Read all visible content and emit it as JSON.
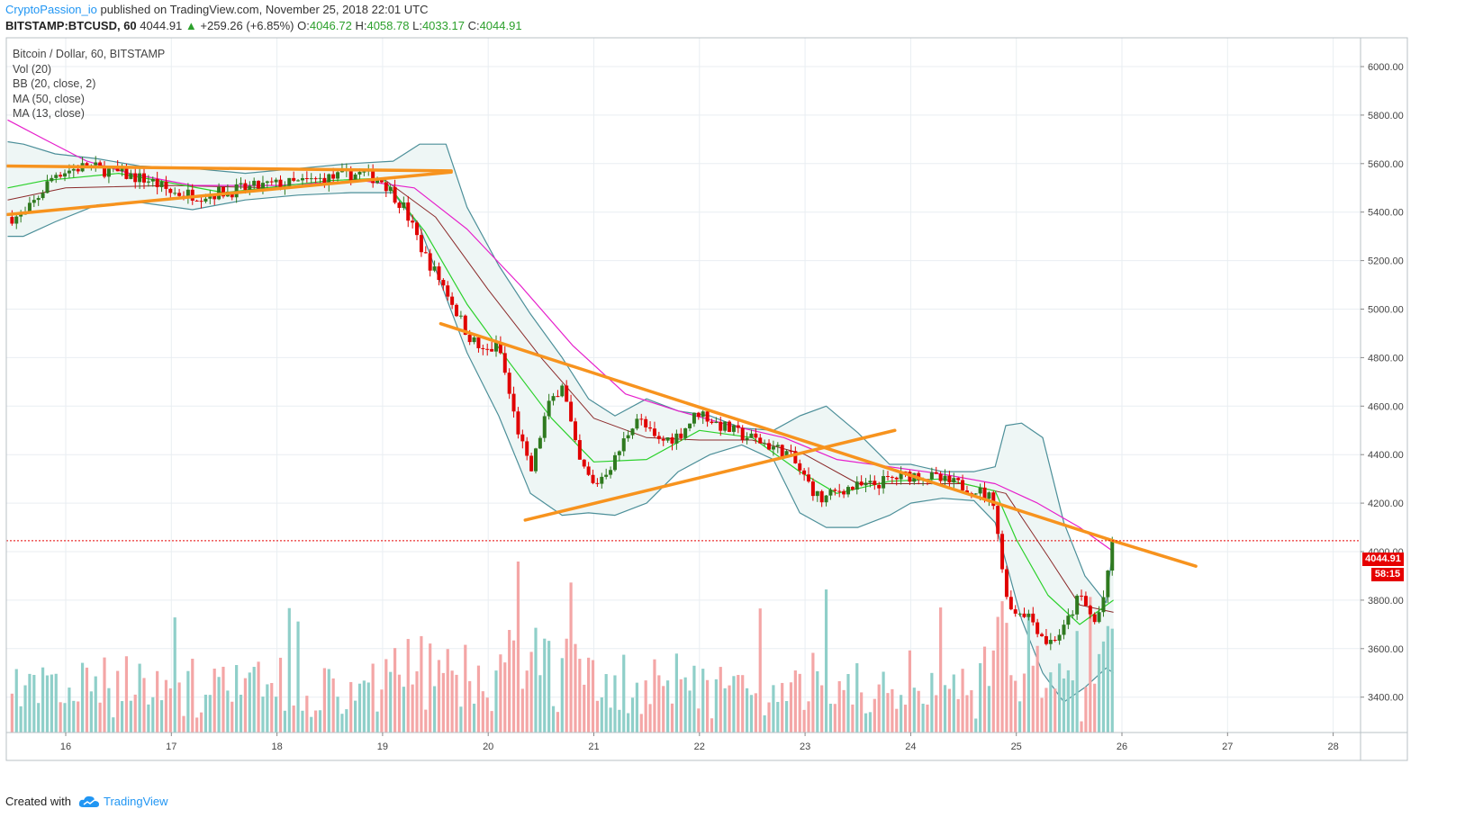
{
  "header": {
    "author": "CryptoPassion_io",
    "published_text": "published on TradingView.com, November 25, 2018 22:01 UTC",
    "symbol": "BITSTAMP:BTCUSD, 60",
    "last": "4044.91",
    "change": "+259.26 (+6.85%)",
    "o_label": "O:",
    "o_value": "4046.72",
    "h_label": "H:",
    "h_value": "4058.78",
    "l_label": "L:",
    "l_value": "4033.17",
    "c_label": "C:",
    "c_value": "4044.91"
  },
  "legend": {
    "title": "Bitcoin / Dollar, 60, BITSTAMP",
    "items": [
      "Vol (20)",
      "BB (20, close, 2)",
      "MA (50, close)",
      "MA (13, close)"
    ]
  },
  "price_tag": {
    "price": "4044.91",
    "countdown": "58:15"
  },
  "footer": {
    "created_with": "Created with",
    "brand": "TradingView"
  },
  "colors": {
    "up": "#2f7a1f",
    "down": "#e00000",
    "vol_up": "#8fcfc9",
    "vol_down": "#f4a6a6",
    "bb": "#4c8f99",
    "bb_fill": "#eef6f5",
    "ma50": "#e61ecb",
    "ma13": "#2bd12b",
    "ma20": "#8b2a2a",
    "trend": "#f7931e",
    "last_line": "#e60000",
    "grid": "#e9eef2"
  },
  "chart_data": {
    "type": "candlestick",
    "x_ticks": [
      "16",
      "17",
      "18",
      "19",
      "20",
      "21",
      "22",
      "23",
      "24",
      "25",
      "26",
      "27",
      "28"
    ],
    "y_ticks": [
      "6000.00",
      "5800.00",
      "5600.00",
      "5400.00",
      "5200.00",
      "5000.00",
      "4800.00",
      "4600.00",
      "4400.00",
      "4200.00",
      "4000.00",
      "3800.00",
      "3600.00",
      "3400.00"
    ],
    "y_range": [
      3250,
      6100
    ],
    "x_range_days": [
      15.45,
      28.6
    ],
    "last_price": 4044.91,
    "close_path": [
      [
        15.45,
        5380
      ],
      [
        15.6,
        5380
      ],
      [
        15.9,
        5560
      ],
      [
        16.2,
        5590
      ],
      [
        16.5,
        5560
      ],
      [
        16.8,
        5530
      ],
      [
        17.0,
        5480
      ],
      [
        17.3,
        5470
      ],
      [
        17.6,
        5490
      ],
      [
        17.9,
        5510
      ],
      [
        18.2,
        5520
      ],
      [
        18.5,
        5540
      ],
      [
        18.8,
        5560
      ],
      [
        19.0,
        5530
      ],
      [
        19.2,
        5420
      ],
      [
        19.4,
        5220
      ],
      [
        19.6,
        5080
      ],
      [
        19.8,
        4900
      ],
      [
        19.95,
        4820
      ],
      [
        20.1,
        4850
      ],
      [
        20.25,
        4550
      ],
      [
        20.4,
        4320
      ],
      [
        20.55,
        4580
      ],
      [
        20.7,
        4700
      ],
      [
        20.85,
        4380
      ],
      [
        21.0,
        4270
      ],
      [
        21.2,
        4380
      ],
      [
        21.4,
        4560
      ],
      [
        21.6,
        4450
      ],
      [
        21.8,
        4480
      ],
      [
        22.0,
        4580
      ],
      [
        22.15,
        4530
      ],
      [
        22.35,
        4490
      ],
      [
        22.6,
        4450
      ],
      [
        22.85,
        4400
      ],
      [
        23.0,
        4300
      ],
      [
        23.15,
        4210
      ],
      [
        23.35,
        4260
      ],
      [
        23.6,
        4270
      ],
      [
        23.9,
        4310
      ],
      [
        24.1,
        4320
      ],
      [
        24.3,
        4290
      ],
      [
        24.6,
        4260
      ],
      [
        24.8,
        4210
      ],
      [
        24.85,
        3950
      ],
      [
        24.95,
        3760
      ],
      [
        25.1,
        3750
      ],
      [
        25.3,
        3620
      ],
      [
        25.45,
        3680
      ],
      [
        25.6,
        3820
      ],
      [
        25.75,
        3700
      ],
      [
        25.85,
        3850
      ],
      [
        25.92,
        4044.91
      ]
    ],
    "bb_points": [
      [
        15.45,
        5690,
        5300
      ],
      [
        15.6,
        5680,
        5300
      ],
      [
        15.9,
        5640,
        5360
      ],
      [
        16.3,
        5620,
        5430
      ],
      [
        16.7,
        5590,
        5440
      ],
      [
        17.2,
        5580,
        5410
      ],
      [
        17.7,
        5560,
        5450
      ],
      [
        18.2,
        5580,
        5470
      ],
      [
        18.7,
        5600,
        5480
      ],
      [
        19.1,
        5610,
        5480
      ],
      [
        19.35,
        5680,
        5340
      ],
      [
        19.6,
        5680,
        5050
      ],
      [
        19.8,
        5420,
        4820
      ],
      [
        20.1,
        5180,
        4560
      ],
      [
        20.4,
        4980,
        4240
      ],
      [
        20.7,
        4800,
        4150
      ],
      [
        20.95,
        4630,
        4160
      ],
      [
        21.2,
        4560,
        4150
      ],
      [
        21.5,
        4630,
        4200
      ],
      [
        21.8,
        4580,
        4330
      ],
      [
        22.1,
        4560,
        4400
      ],
      [
        22.4,
        4510,
        4440
      ],
      [
        22.7,
        4500,
        4380
      ],
      [
        22.95,
        4560,
        4160
      ],
      [
        23.2,
        4600,
        4100
      ],
      [
        23.5,
        4490,
        4100
      ],
      [
        23.8,
        4360,
        4150
      ],
      [
        24.0,
        4360,
        4200
      ],
      [
        24.3,
        4330,
        4220
      ],
      [
        24.6,
        4330,
        4210
      ],
      [
        24.8,
        4350,
        4120
      ],
      [
        24.9,
        4520,
        3960
      ],
      [
        25.05,
        4530,
        3720
      ],
      [
        25.25,
        4470,
        3500
      ],
      [
        25.45,
        4120,
        3380
      ],
      [
        25.65,
        3900,
        3440
      ],
      [
        25.85,
        3790,
        3520
      ],
      [
        25.92,
        4030,
        3500
      ]
    ],
    "ma50_points": [
      [
        15.45,
        5780
      ],
      [
        15.8,
        5700
      ],
      [
        16.2,
        5610
      ],
      [
        16.6,
        5560
      ],
      [
        17.2,
        5510
      ],
      [
        18.0,
        5510
      ],
      [
        18.8,
        5530
      ],
      [
        19.3,
        5500
      ],
      [
        19.8,
        5330
      ],
      [
        20.3,
        5100
      ],
      [
        20.8,
        4850
      ],
      [
        21.3,
        4650
      ],
      [
        21.8,
        4580
      ],
      [
        22.3,
        4520
      ],
      [
        22.8,
        4470
      ],
      [
        23.3,
        4380
      ],
      [
        23.8,
        4350
      ],
      [
        24.3,
        4320
      ],
      [
        24.8,
        4280
      ],
      [
        25.2,
        4200
      ],
      [
        25.6,
        4100
      ],
      [
        25.92,
        4000
      ]
    ],
    "ma13_points": [
      [
        15.45,
        5500
      ],
      [
        15.8,
        5530
      ],
      [
        16.5,
        5560
      ],
      [
        17.5,
        5480
      ],
      [
        18.5,
        5530
      ],
      [
        19.0,
        5540
      ],
      [
        19.4,
        5320
      ],
      [
        19.8,
        5020
      ],
      [
        20.2,
        4780
      ],
      [
        20.6,
        4550
      ],
      [
        21.0,
        4370
      ],
      [
        21.5,
        4380
      ],
      [
        22.0,
        4500
      ],
      [
        22.5,
        4470
      ],
      [
        22.95,
        4330
      ],
      [
        23.3,
        4240
      ],
      [
        23.8,
        4290
      ],
      [
        24.3,
        4300
      ],
      [
        24.8,
        4250
      ],
      [
        25.0,
        4050
      ],
      [
        25.3,
        3820
      ],
      [
        25.6,
        3700
      ],
      [
        25.92,
        3800
      ]
    ],
    "ma20_points": [
      [
        15.45,
        5450
      ],
      [
        16.0,
        5500
      ],
      [
        17.0,
        5510
      ],
      [
        18.0,
        5500
      ],
      [
        19.0,
        5540
      ],
      [
        19.5,
        5380
      ],
      [
        20.0,
        5080
      ],
      [
        20.5,
        4800
      ],
      [
        21.0,
        4550
      ],
      [
        21.5,
        4470
      ],
      [
        22.0,
        4460
      ],
      [
        22.5,
        4460
      ],
      [
        23.0,
        4400
      ],
      [
        23.5,
        4280
      ],
      [
        24.0,
        4280
      ],
      [
        24.5,
        4280
      ],
      [
        24.9,
        4240
      ],
      [
        25.3,
        3980
      ],
      [
        25.6,
        3780
      ],
      [
        25.92,
        3750
      ]
    ],
    "trendlines": [
      [
        15.45,
        5590,
        19.65,
        5570
      ],
      [
        15.45,
        5390,
        19.65,
        5565
      ],
      [
        19.55,
        4940,
        25.95,
        4040
      ],
      [
        25.95,
        4040,
        26.7,
        3940
      ],
      [
        20.35,
        4130,
        23.85,
        4500
      ]
    ]
  }
}
